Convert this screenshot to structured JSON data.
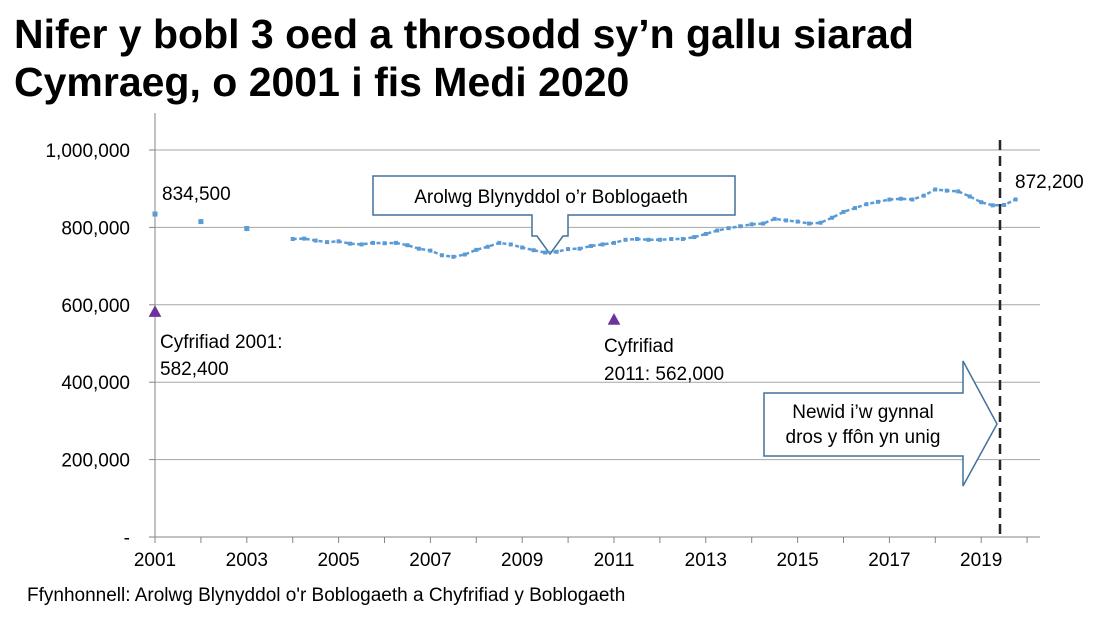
{
  "title_line1": "Nifer y bobl 3 oed a throsodd sy’n gallu siarad",
  "title_line2": "Cymraeg, o 2001 i fis Medi 2020",
  "source": "Ffynhonnell: Arolwg Blynyddol o'r Boblogaeth a Chyfrifiad y Boblogaeth",
  "colors": {
    "series": "#5b9bd5",
    "census": "#7030a0",
    "grid": "#a6a6a6",
    "divider": "#262626",
    "callout_border": "#41719c"
  },
  "chart_data": {
    "type": "line",
    "title": "Nifer y bobl 3 oed a throsodd sy’n gallu siarad Cymraeg, o 2001 i fis Medi 2020",
    "xlabel": "",
    "ylabel": "",
    "xlim": [
      2001,
      2020
    ],
    "ylim": [
      0,
      1000000
    ],
    "x_ticks": [
      "2001",
      "2003",
      "2005",
      "2007",
      "2009",
      "2011",
      "2013",
      "2015",
      "2017",
      "2019"
    ],
    "y_ticks": [
      "-",
      "200,000",
      "400,000",
      "600,000",
      "800,000",
      "1,000,000"
    ],
    "grid": true,
    "series": [
      {
        "name": "Arolwg Blynyddol o’r Boblogaeth",
        "annual_points": [
          [
            2001.0,
            834500
          ],
          [
            2002.0,
            815000
          ],
          [
            2003.0,
            797000
          ]
        ],
        "quarterly": [
          [
            2004.0,
            770000
          ],
          [
            2004.25,
            771000
          ],
          [
            2004.5,
            766000
          ],
          [
            2004.75,
            762000
          ],
          [
            2005.0,
            764000
          ],
          [
            2005.25,
            758000
          ],
          [
            2005.5,
            756000
          ],
          [
            2005.75,
            760000
          ],
          [
            2006.0,
            759000
          ],
          [
            2006.25,
            760000
          ],
          [
            2006.5,
            754000
          ],
          [
            2006.75,
            745000
          ],
          [
            2007.0,
            740000
          ],
          [
            2007.25,
            728000
          ],
          [
            2007.5,
            724000
          ],
          [
            2007.75,
            730000
          ],
          [
            2008.0,
            742000
          ],
          [
            2008.25,
            750000
          ],
          [
            2008.5,
            760000
          ],
          [
            2008.75,
            756000
          ],
          [
            2009.0,
            748000
          ],
          [
            2009.25,
            741000
          ],
          [
            2009.5,
            735000
          ],
          [
            2009.75,
            737000
          ],
          [
            2010.0,
            744000
          ],
          [
            2010.25,
            745000
          ],
          [
            2010.5,
            752000
          ],
          [
            2010.75,
            756000
          ],
          [
            2011.0,
            760000
          ],
          [
            2011.25,
            768000
          ],
          [
            2011.5,
            770000
          ],
          [
            2011.75,
            768000
          ],
          [
            2012.0,
            768000
          ],
          [
            2012.25,
            770000
          ],
          [
            2012.5,
            770000
          ],
          [
            2012.75,
            775000
          ],
          [
            2013.0,
            783000
          ],
          [
            2013.25,
            792000
          ],
          [
            2013.5,
            798000
          ],
          [
            2013.75,
            803000
          ],
          [
            2014.0,
            808000
          ],
          [
            2014.25,
            810000
          ],
          [
            2014.5,
            822000
          ],
          [
            2014.75,
            818000
          ],
          [
            2015.0,
            815000
          ],
          [
            2015.25,
            810000
          ],
          [
            2015.5,
            812000
          ],
          [
            2015.75,
            825000
          ],
          [
            2016.0,
            840000
          ],
          [
            2016.25,
            850000
          ],
          [
            2016.5,
            860000
          ],
          [
            2016.75,
            866000
          ],
          [
            2017.0,
            872000
          ],
          [
            2017.25,
            874000
          ],
          [
            2017.5,
            872000
          ],
          [
            2017.75,
            882000
          ],
          [
            2018.0,
            898000
          ],
          [
            2018.25,
            895000
          ],
          [
            2018.5,
            893000
          ],
          [
            2018.75,
            880000
          ],
          [
            2019.0,
            865000
          ],
          [
            2019.25,
            857000
          ],
          [
            2019.5,
            858000
          ],
          [
            2019.75,
            872200
          ]
        ]
      },
      {
        "name": "Cyfrifiad",
        "points": [
          [
            2001.0,
            582400
          ],
          [
            2011.0,
            562000
          ]
        ]
      }
    ],
    "annotations": {
      "first_value": "834,500",
      "last_value": "872,200",
      "census_2001_line1": "Cyfrifiad 2001:",
      "census_2001_line2": "582,400",
      "census_2011_line1": "Cyfrifiad",
      "census_2011_line2": "2011: 562,000",
      "aps_callout": "Arolwg Blynyddol o’r Boblogaeth",
      "phone_line1": "Newid i’w gynnal",
      "phone_line2": "dros y ffôn yn unig"
    }
  }
}
